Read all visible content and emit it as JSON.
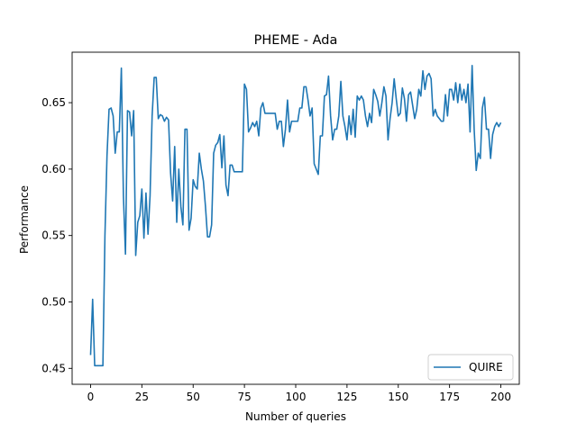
{
  "chart_data": {
    "type": "line",
    "title": "PHEME - Ada",
    "xlabel": "Number of queries",
    "ylabel": "Performance",
    "xlim": [
      -9,
      209
    ],
    "ylim": [
      0.438,
      0.688
    ],
    "xticks": [
      0,
      25,
      50,
      75,
      100,
      125,
      150,
      175,
      200
    ],
    "yticks": [
      0.45,
      0.5,
      0.55,
      0.6,
      0.65
    ],
    "ytick_labels": [
      "0.45",
      "0.50",
      "0.55",
      "0.60",
      "0.65"
    ],
    "grid": false,
    "legend_position": "lower right",
    "series": [
      {
        "name": "QUIRE",
        "color": "#1f77b4",
        "x": [
          0,
          1,
          2,
          3,
          4,
          5,
          6,
          7,
          8,
          9,
          10,
          11,
          12,
          13,
          14,
          15,
          16,
          17,
          18,
          19,
          20,
          21,
          22,
          23,
          24,
          25,
          26,
          27,
          28,
          29,
          30,
          31,
          32,
          33,
          34,
          35,
          36,
          37,
          38,
          39,
          40,
          41,
          42,
          43,
          44,
          45,
          46,
          47,
          48,
          49,
          50,
          51,
          52,
          53,
          54,
          55,
          56,
          57,
          58,
          59,
          60,
          61,
          62,
          63,
          64,
          65,
          66,
          67,
          68,
          69,
          70,
          71,
          72,
          73,
          74,
          75,
          76,
          77,
          78,
          79,
          80,
          81,
          82,
          83,
          84,
          85,
          86,
          87,
          88,
          89,
          90,
          91,
          92,
          93,
          94,
          95,
          96,
          97,
          98,
          99,
          100,
          101,
          102,
          103,
          104,
          105,
          106,
          107,
          108,
          109,
          110,
          111,
          112,
          113,
          114,
          115,
          116,
          117,
          118,
          119,
          120,
          121,
          122,
          123,
          124,
          125,
          126,
          127,
          128,
          129,
          130,
          131,
          132,
          133,
          134,
          135,
          136,
          137,
          138,
          139,
          140,
          141,
          142,
          143,
          144,
          145,
          146,
          147,
          148,
          149,
          150,
          151,
          152,
          153,
          154,
          155,
          156,
          157,
          158,
          159,
          160,
          161,
          162,
          163,
          164,
          165,
          166,
          167,
          168,
          169,
          170,
          171,
          172,
          173,
          174,
          175,
          176,
          177,
          178,
          179,
          180,
          181,
          182,
          183,
          184,
          185,
          186,
          187,
          188,
          189,
          190,
          191,
          192,
          193,
          194,
          195,
          196,
          197,
          198,
          199,
          200
        ],
        "values": [
          0.46,
          0.502,
          0.452,
          0.452,
          0.452,
          0.452,
          0.452,
          0.55,
          0.61,
          0.645,
          0.646,
          0.64,
          0.612,
          0.628,
          0.628,
          0.676,
          0.58,
          0.536,
          0.644,
          0.643,
          0.625,
          0.644,
          0.535,
          0.56,
          0.565,
          0.585,
          0.548,
          0.582,
          0.551,
          0.58,
          0.64,
          0.669,
          0.669,
          0.638,
          0.641,
          0.64,
          0.636,
          0.639,
          0.637,
          0.597,
          0.576,
          0.617,
          0.56,
          0.6,
          0.572,
          0.558,
          0.63,
          0.63,
          0.554,
          0.563,
          0.592,
          0.587,
          0.585,
          0.612,
          0.6,
          0.591,
          0.572,
          0.549,
          0.549,
          0.558,
          0.612,
          0.618,
          0.62,
          0.626,
          0.601,
          0.625,
          0.588,
          0.58,
          0.603,
          0.603,
          0.598,
          0.598,
          0.598,
          0.598,
          0.598,
          0.664,
          0.66,
          0.628,
          0.631,
          0.635,
          0.632,
          0.636,
          0.625,
          0.646,
          0.65,
          0.642,
          0.642,
          0.642,
          0.642,
          0.642,
          0.642,
          0.63,
          0.636,
          0.636,
          0.617,
          0.63,
          0.652,
          0.628,
          0.636,
          0.636,
          0.636,
          0.636,
          0.646,
          0.646,
          0.662,
          0.662,
          0.652,
          0.64,
          0.646,
          0.604,
          0.6,
          0.596,
          0.625,
          0.625,
          0.655,
          0.656,
          0.67,
          0.64,
          0.622,
          0.63,
          0.63,
          0.64,
          0.666,
          0.64,
          0.632,
          0.622,
          0.64,
          0.626,
          0.645,
          0.624,
          0.655,
          0.652,
          0.655,
          0.652,
          0.64,
          0.632,
          0.642,
          0.635,
          0.66,
          0.656,
          0.651,
          0.64,
          0.65,
          0.662,
          0.655,
          0.622,
          0.638,
          0.65,
          0.668,
          0.653,
          0.64,
          0.642,
          0.661,
          0.653,
          0.636,
          0.656,
          0.658,
          0.648,
          0.638,
          0.645,
          0.66,
          0.655,
          0.674,
          0.66,
          0.67,
          0.672,
          0.668,
          0.64,
          0.645,
          0.64,
          0.638,
          0.636,
          0.636,
          0.656,
          0.64,
          0.66,
          0.66,
          0.652,
          0.665,
          0.65,
          0.664,
          0.652,
          0.66,
          0.65,
          0.664,
          0.628,
          0.678,
          0.63,
          0.599,
          0.612,
          0.608,
          0.646,
          0.654,
          0.63,
          0.63,
          0.608,
          0.626,
          0.632,
          0.635,
          0.632,
          0.635
        ]
      }
    ]
  }
}
